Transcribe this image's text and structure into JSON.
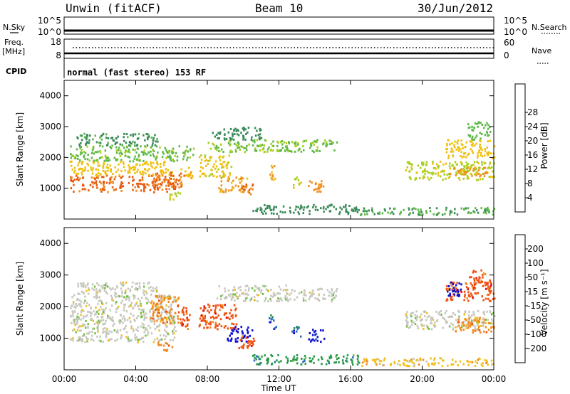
{
  "header": {
    "station": "Unwin (fitACF)",
    "beam": "Beam 10",
    "date": "30/Jun/2012"
  },
  "aux_panels": {
    "nsky_label": "N.Sky",
    "nsky_ticks": [
      "10^5",
      "10^0"
    ],
    "nsearch_label": "N.Search",
    "nsearch_ticks": [
      "10^5",
      "10^0"
    ],
    "freq_label": "Freq.",
    "freq_unit": "[MHz]",
    "freq_ticks": [
      "18",
      "8"
    ],
    "nave_label": "Nave",
    "nave_ticks": [
      "60",
      "0"
    ],
    "cpid_label": "CPID",
    "cpid_text": "normal (fast stereo) 153 RF"
  },
  "chart_data": [
    {
      "type": "heatmap",
      "name": "power",
      "ylabel": "Slant Range [km]",
      "xlabel": "",
      "ylim": [
        0,
        4500
      ],
      "xlim": [
        0,
        24
      ],
      "yticks": [
        1000,
        2000,
        3000,
        4000
      ],
      "colorbar": {
        "label": "Power [dB]",
        "ticks": [
          "4",
          "8",
          "12",
          "16",
          "20",
          "24",
          "28"
        ],
        "colors": [
          "#1010e0",
          "#2a5bb8",
          "#3a8a5a",
          "#5fb84a",
          "#a8d020",
          "#f0c010",
          "#f09020",
          "#e85a10",
          "#e02010"
        ]
      },
      "regions": [
        {
          "t0": 0.3,
          "t1": 6.2,
          "r0": 900,
          "r1": 1450,
          "v": 27
        },
        {
          "t0": 0.3,
          "t1": 6.0,
          "r0": 1450,
          "r1": 1900,
          "v": 20
        },
        {
          "t0": 0.3,
          "t1": 7.2,
          "r0": 1900,
          "r1": 2400,
          "v": 13
        },
        {
          "t0": 0.6,
          "t1": 5.2,
          "r0": 2400,
          "r1": 2800,
          "v": 9
        },
        {
          "t0": 5.0,
          "t1": 6.7,
          "r0": 1050,
          "r1": 1550,
          "v": 26
        },
        {
          "t0": 6.5,
          "t1": 7.2,
          "r0": 1300,
          "r1": 1700,
          "v": 21
        },
        {
          "t0": 5.8,
          "t1": 6.5,
          "r0": 600,
          "r1": 900,
          "v": 17
        },
        {
          "t0": 7.5,
          "t1": 9.3,
          "r0": 1400,
          "r1": 2100,
          "v": 19
        },
        {
          "t0": 8.6,
          "t1": 10.2,
          "r0": 900,
          "r1": 1400,
          "v": 23
        },
        {
          "t0": 9.8,
          "t1": 10.5,
          "r0": 800,
          "r1": 1200,
          "v": 26
        },
        {
          "t0": 8.0,
          "t1": 12.5,
          "r0": 2200,
          "r1": 2600,
          "v": 14
        },
        {
          "t0": 8.2,
          "t1": 11.0,
          "r0": 2600,
          "r1": 3000,
          "v": 8
        },
        {
          "t0": 11.4,
          "t1": 11.8,
          "r0": 1300,
          "r1": 1800,
          "v": 22
        },
        {
          "t0": 12.7,
          "t1": 13.2,
          "r0": 1000,
          "r1": 1400,
          "v": 18
        },
        {
          "t0": 13.6,
          "t1": 14.5,
          "r0": 900,
          "r1": 1300,
          "v": 24
        },
        {
          "t0": 12.4,
          "t1": 15.2,
          "r0": 2200,
          "r1": 2600,
          "v": 13
        },
        {
          "t0": 10.5,
          "t1": 16.5,
          "r0": 200,
          "r1": 500,
          "v": 8
        },
        {
          "t0": 19.0,
          "t1": 24.0,
          "r0": 1300,
          "r1": 1900,
          "v": 17
        },
        {
          "t0": 21.5,
          "t1": 23.6,
          "r0": 1400,
          "r1": 1700,
          "v": 24
        },
        {
          "t0": 21.3,
          "t1": 24.0,
          "r0": 2000,
          "r1": 2600,
          "v": 20
        },
        {
          "t0": 22.5,
          "t1": 23.8,
          "r0": 2600,
          "r1": 3200,
          "v": 12
        },
        {
          "t0": 16.5,
          "t1": 24.0,
          "r0": 150,
          "r1": 400,
          "v": 10
        }
      ]
    },
    {
      "type": "heatmap",
      "name": "velocity",
      "ylabel": "Slant Range [km]",
      "xlabel": "Time UT",
      "ylim": [
        0,
        4500
      ],
      "xlim": [
        0,
        24
      ],
      "yticks": [
        1000,
        2000,
        3000,
        4000
      ],
      "xticks": [
        "00:00",
        "04:00",
        "08:00",
        "12:00",
        "16:00",
        "20:00",
        "00:00"
      ],
      "colorbar": {
        "label": "Velocity [m s⁻¹]",
        "ticks": [
          "-200",
          "-100",
          "-50",
          "-15",
          "15",
          "50",
          "100",
          "200"
        ],
        "colors": [
          "#e01010",
          "#f05010",
          "#f08a20",
          "#f0c020",
          "#c8c8c0",
          "#70c040",
          "#2a9a4a",
          "#2a6ac0",
          "#1010d0"
        ]
      },
      "regions": [
        {
          "t0": 0.3,
          "t1": 6.2,
          "r0": 900,
          "r1": 2400,
          "v": 0
        },
        {
          "t0": 0.6,
          "t1": 5.2,
          "r0": 2400,
          "r1": 2800,
          "v": 10
        },
        {
          "t0": 4.8,
          "t1": 6.4,
          "r0": 1500,
          "r1": 2400,
          "v": -60
        },
        {
          "t0": 5.2,
          "t1": 6.0,
          "r0": 600,
          "r1": 900,
          "v": -80
        },
        {
          "t0": 6.3,
          "t1": 7.0,
          "r0": 1300,
          "r1": 2100,
          "v": -200
        },
        {
          "t0": 7.5,
          "t1": 9.6,
          "r0": 1300,
          "r1": 2100,
          "v": -200
        },
        {
          "t0": 9.0,
          "t1": 10.5,
          "r0": 900,
          "r1": 1400,
          "v": 200
        },
        {
          "t0": 9.7,
          "t1": 10.8,
          "r0": 700,
          "r1": 1100,
          "v": -150
        },
        {
          "t0": 8.5,
          "t1": 12.5,
          "r0": 2200,
          "r1": 2700,
          "v": 0
        },
        {
          "t0": 11.4,
          "t1": 11.8,
          "r0": 1300,
          "r1": 1800,
          "v": 180
        },
        {
          "t0": 12.7,
          "t1": 13.2,
          "r0": 1000,
          "r1": 1400,
          "v": 150
        },
        {
          "t0": 13.6,
          "t1": 14.5,
          "r0": 900,
          "r1": 1300,
          "v": 200
        },
        {
          "t0": 12.4,
          "t1": 15.2,
          "r0": 2200,
          "r1": 2600,
          "v": 0
        },
        {
          "t0": 10.5,
          "t1": 16.5,
          "r0": 200,
          "r1": 500,
          "v": 60
        },
        {
          "t0": 16.5,
          "t1": 24.0,
          "r0": 150,
          "r1": 400,
          "v": -50
        },
        {
          "t0": 19.0,
          "t1": 24.0,
          "r0": 1300,
          "r1": 1900,
          "v": 0
        },
        {
          "t0": 21.8,
          "t1": 24.0,
          "r0": 1200,
          "r1": 1700,
          "v": -60
        },
        {
          "t0": 21.3,
          "t1": 24.0,
          "r0": 2200,
          "r1": 2800,
          "v": -200
        },
        {
          "t0": 21.3,
          "t1": 22.2,
          "r0": 2300,
          "r1": 2800,
          "v": 200
        },
        {
          "t0": 22.6,
          "t1": 23.8,
          "r0": 2700,
          "r1": 3200,
          "v": -200
        }
      ]
    }
  ]
}
